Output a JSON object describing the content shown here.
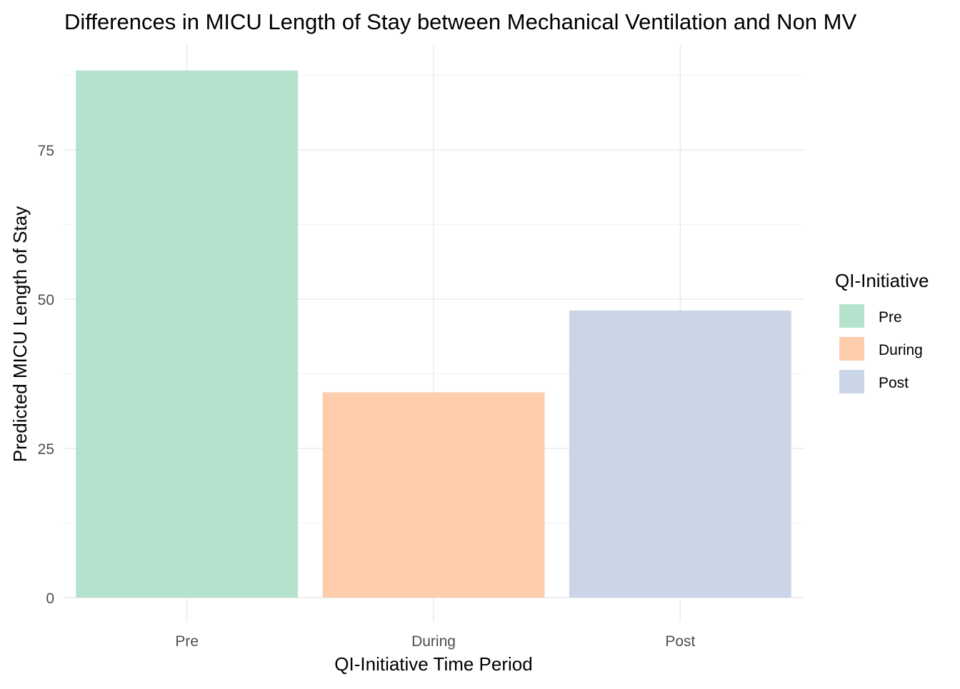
{
  "chart_data": {
    "type": "bar",
    "title": "Differences in MICU Length of Stay between Mechanical Ventilation and Non MV",
    "xlabel": "QI-Initiative Time Period",
    "ylabel": "Predicted MICU Length of Stay",
    "categories": [
      "Pre",
      "During",
      "Post"
    ],
    "values": [
      88.3,
      34.4,
      48.1
    ],
    "colors": [
      "#b3e2cd",
      "#fdcdac",
      "#cbd5e8"
    ],
    "ylim": [
      0,
      92.6
    ],
    "yticks": [
      0,
      25,
      50,
      75
    ],
    "ytick_labels": [
      "0",
      "25",
      "50",
      "75"
    ],
    "grid": true,
    "legend": {
      "title": "QI-Initiative",
      "position": "right",
      "items": [
        "Pre",
        "During",
        "Post"
      ]
    }
  }
}
